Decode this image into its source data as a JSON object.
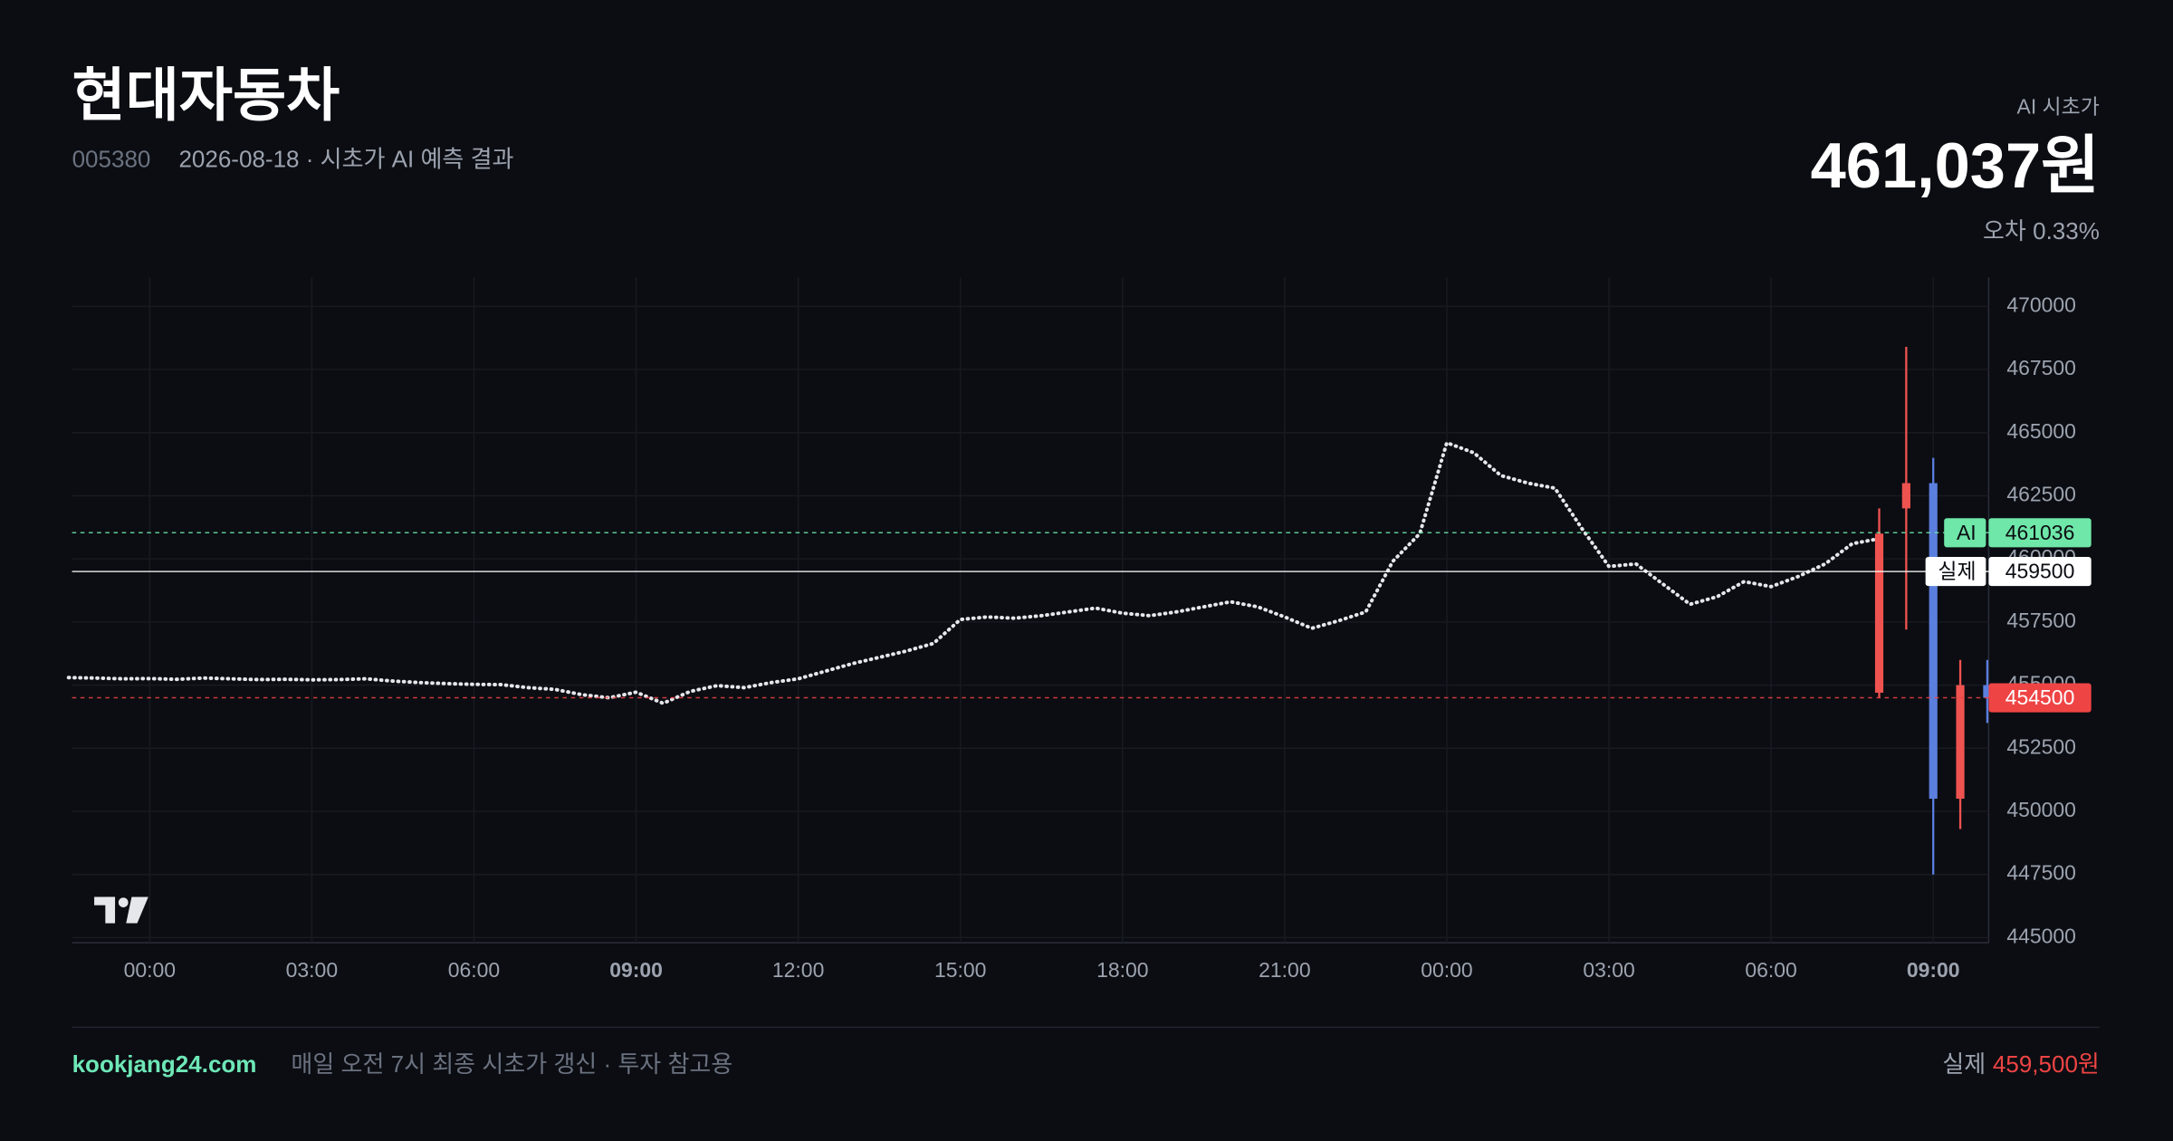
{
  "header": {
    "title": "현대자동차",
    "code": "005380",
    "subtitle": "2026-08-18 · 시초가 AI 예측 결과",
    "price_label": "AI 시초가",
    "price": "461,037원",
    "error": "오차 0.33%"
  },
  "chart_data": {
    "type": "combo",
    "categories": [
      null,
      null,
      null,
      "00:00",
      null,
      null,
      null,
      null,
      null,
      "03:00",
      null,
      null,
      null,
      null,
      null,
      "06:00",
      null,
      null,
      null,
      null,
      null,
      "09:00",
      null,
      null,
      null,
      null,
      null,
      "12:00",
      null,
      null,
      null,
      null,
      null,
      "15:00",
      null,
      null,
      null,
      null,
      null,
      "18:00",
      null,
      null,
      null,
      null,
      null,
      "21:00",
      null,
      null,
      null,
      null,
      null,
      "00:00",
      null,
      null,
      null,
      null,
      null,
      "03:00",
      null,
      null,
      null,
      null,
      null,
      "06:00",
      null,
      null,
      null,
      null,
      null,
      "09:00",
      null,
      null
    ],
    "emphasized_categories": [
      21,
      69
    ],
    "line": {
      "color": "#e5e7eb",
      "values": [
        455300,
        455280,
        455250,
        455260,
        455230,
        455280,
        455250,
        455220,
        455230,
        455210,
        455220,
        455250,
        455160,
        455100,
        455060,
        455030,
        455020,
        454900,
        454830,
        454620,
        454500,
        454720,
        454280,
        454750,
        454980,
        454900,
        455100,
        455250,
        455550,
        455850,
        456100,
        456350,
        456650,
        457600,
        457700,
        457650,
        457750,
        457900,
        458050,
        457850,
        457750,
        457900,
        458100,
        458300,
        458100,
        457700,
        457250,
        457550,
        457900,
        459900,
        461000,
        464600,
        464200,
        463300,
        463000,
        462800,
        461200,
        459700,
        459800,
        459000,
        458200,
        458500,
        459100,
        458900,
        459300,
        459800,
        460600,
        460800,
        null,
        null,
        null,
        null
      ]
    },
    "candles": {
      "up_color": "#ef5350",
      "down_color": "#5b7fde",
      "open": [
        null,
        null,
        null,
        null,
        null,
        null,
        null,
        null,
        null,
        null,
        null,
        null,
        null,
        null,
        null,
        null,
        null,
        null,
        null,
        null,
        null,
        null,
        null,
        null,
        null,
        null,
        null,
        null,
        null,
        null,
        null,
        null,
        null,
        null,
        null,
        null,
        null,
        null,
        null,
        null,
        null,
        null,
        null,
        null,
        null,
        null,
        null,
        null,
        null,
        null,
        null,
        null,
        null,
        null,
        null,
        null,
        null,
        null,
        null,
        null,
        null,
        null,
        null,
        null,
        null,
        null,
        null,
        454700,
        462000,
        463000,
        450500,
        455000
      ],
      "high": [
        null,
        null,
        null,
        null,
        null,
        null,
        null,
        null,
        null,
        null,
        null,
        null,
        null,
        null,
        null,
        null,
        null,
        null,
        null,
        null,
        null,
        null,
        null,
        null,
        null,
        null,
        null,
        null,
        null,
        null,
        null,
        null,
        null,
        null,
        null,
        null,
        null,
        null,
        null,
        null,
        null,
        null,
        null,
        null,
        null,
        null,
        null,
        null,
        null,
        null,
        null,
        null,
        null,
        null,
        null,
        null,
        null,
        null,
        null,
        null,
        null,
        null,
        null,
        null,
        null,
        null,
        null,
        462000,
        468400,
        464000,
        456000,
        456000
      ],
      "low": [
        null,
        null,
        null,
        null,
        null,
        null,
        null,
        null,
        null,
        null,
        null,
        null,
        null,
        null,
        null,
        null,
        null,
        null,
        null,
        null,
        null,
        null,
        null,
        null,
        null,
        null,
        null,
        null,
        null,
        null,
        null,
        null,
        null,
        null,
        null,
        null,
        null,
        null,
        null,
        null,
        null,
        null,
        null,
        null,
        null,
        null,
        null,
        null,
        null,
        null,
        null,
        null,
        null,
        null,
        null,
        null,
        null,
        null,
        null,
        null,
        null,
        null,
        null,
        null,
        null,
        null,
        null,
        454500,
        457200,
        447500,
        449300,
        453500
      ],
      "close": [
        null,
        null,
        null,
        null,
        null,
        null,
        null,
        null,
        null,
        null,
        null,
        null,
        null,
        null,
        null,
        null,
        null,
        null,
        null,
        null,
        null,
        null,
        null,
        null,
        null,
        null,
        null,
        null,
        null,
        null,
        null,
        null,
        null,
        null,
        null,
        null,
        null,
        null,
        null,
        null,
        null,
        null,
        null,
        null,
        null,
        null,
        null,
        null,
        null,
        null,
        null,
        null,
        null,
        null,
        null,
        null,
        null,
        null,
        null,
        null,
        null,
        null,
        null,
        null,
        null,
        null,
        null,
        461000,
        463000,
        450500,
        455000,
        454500
      ]
    },
    "ref_lines": [
      {
        "label": "AI",
        "value": 461036,
        "color": "#6ee7a8",
        "text_color": "#0b0d12",
        "dashed": true
      },
      {
        "label": "실제",
        "value": 459500,
        "color": "#ffffff",
        "text_color": "#0b0d12",
        "dashed": false
      },
      {
        "value": 454500,
        "color": "#ef4444",
        "text_color": "#ffffff",
        "dashed": true
      }
    ],
    "ylim": [
      444800,
      471150
    ],
    "yticks": [
      445000,
      447500,
      450000,
      452500,
      455000,
      457500,
      460000,
      462500,
      465000,
      467500,
      470000
    ],
    "grid": true
  },
  "footer": {
    "site": "kookjang24.com",
    "note": "매일 오전 7시 최종 시초가 갱신 · 투자 참고용",
    "actual_label": "실제",
    "actual_price": "459,500원"
  }
}
